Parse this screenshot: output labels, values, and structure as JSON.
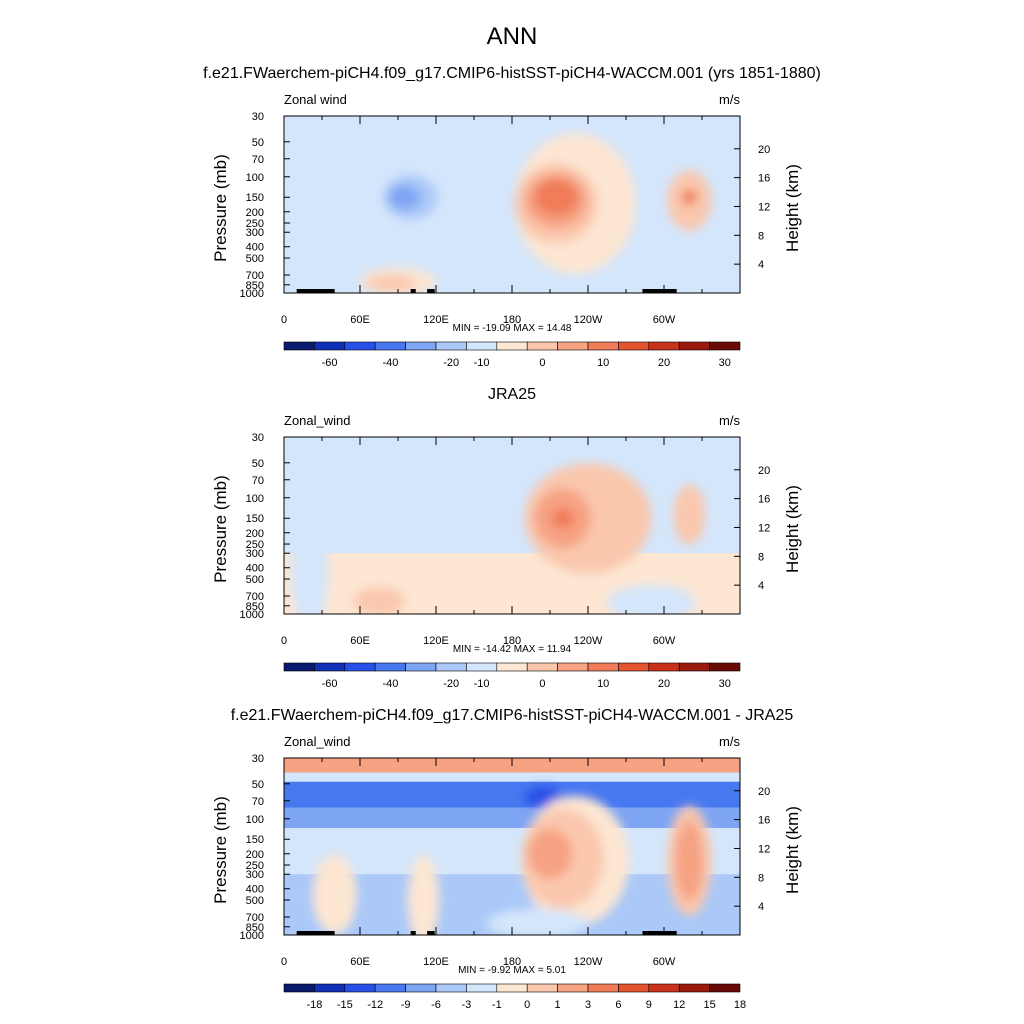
{
  "figure": {
    "title": "ANN"
  },
  "chart_data": [
    {
      "type": "heatmap",
      "title": "f.e21.FWaerchem-piCH4.f09_g17.CMIP6-histSST-piCH4-WACCM.001 (yrs 1851-1880)",
      "left_label": "Zonal wind",
      "right_label": "m/s",
      "ylabel": "Pressure (mb)",
      "ylabel_right": "Height (km)",
      "y_ticks": [
        "30",
        "50",
        "70",
        "100",
        "150",
        "200",
        "250",
        "300",
        "400",
        "500",
        "700",
        "850",
        "1000"
      ],
      "y_ticks_right": [
        "20",
        "16",
        "12",
        "8",
        "4"
      ],
      "x_ticks": [
        "0",
        "60E",
        "120E",
        "180",
        "120W",
        "60W"
      ],
      "stats": "MIN = -19.09  MAX =  14.48",
      "colorbar_labels": [
        "-60",
        "-40",
        "-20",
        "-10",
        "0",
        "10",
        "20",
        "30"
      ],
      "colorbar_colors": [
        "#0a1a6e",
        "#1030b8",
        "#2850e6",
        "#4878f0",
        "#7ea4f4",
        "#aac8f8",
        "#d4e6fb",
        "#fde6d2",
        "#fac7ad",
        "#f6a283",
        "#f07c58",
        "#e5542e",
        "#c8311a",
        "#9a1a0d",
        "#6a0a06"
      ],
      "bottom_band": "#d4e6fb",
      "blobs": [
        {
          "lon": 100,
          "p": 150,
          "w": 42,
          "h": 22,
          "c": "#aac8f8"
        },
        {
          "lon": 95,
          "p": 150,
          "w": 25,
          "h": 12,
          "c": "#7ea4f4"
        },
        {
          "lon": 230,
          "p": 170,
          "w": 95,
          "h": 70,
          "c": "#fde6d2"
        },
        {
          "lon": 215,
          "p": 170,
          "w": 65,
          "h": 40,
          "c": "#fac7ad"
        },
        {
          "lon": 215,
          "p": 160,
          "w": 50,
          "h": 28,
          "c": "#f6a283"
        },
        {
          "lon": 215,
          "p": 150,
          "w": 35,
          "h": 18,
          "c": "#f07c58"
        },
        {
          "lon": 320,
          "p": 160,
          "w": 35,
          "h": 30,
          "c": "#fac7ad"
        },
        {
          "lon": 320,
          "p": 150,
          "w": 12,
          "h": 8,
          "c": "#f07c58"
        },
        {
          "lon": 90,
          "p": 800,
          "w": 60,
          "h": 14,
          "c": "#fde6d2"
        },
        {
          "lon": 85,
          "p": 820,
          "w": 40,
          "h": 8,
          "c": "#fac7ad"
        }
      ],
      "topo": [
        {
          "lon0": 10,
          "lon1": 40
        },
        {
          "lon0": 100,
          "lon1": 104
        },
        {
          "lon0": 113,
          "lon1": 119
        },
        {
          "lon0": 283,
          "lon1": 310
        }
      ]
    },
    {
      "type": "heatmap",
      "title": "JRA25",
      "left_label": "Zonal_wind",
      "right_label": "m/s",
      "ylabel": "Pressure (mb)",
      "ylabel_right": "Height (km)",
      "y_ticks": [
        "30",
        "50",
        "70",
        "100",
        "150",
        "200",
        "250",
        "300",
        "400",
        "500",
        "700",
        "850",
        "1000"
      ],
      "y_ticks_right": [
        "20",
        "16",
        "12",
        "8",
        "4"
      ],
      "x_ticks": [
        "0",
        "60E",
        "120E",
        "180",
        "120W",
        "60W"
      ],
      "stats": "MIN = -14.42  MAX =  11.94",
      "colorbar_labels": [
        "-60",
        "-40",
        "-20",
        "-10",
        "0",
        "10",
        "20",
        "30"
      ],
      "colorbar_colors": [
        "#0a1a6e",
        "#1030b8",
        "#2850e6",
        "#4878f0",
        "#7ea4f4",
        "#aac8f8",
        "#d4e6fb",
        "#fde6d2",
        "#fac7ad",
        "#f6a283",
        "#f07c58",
        "#e5542e",
        "#c8311a",
        "#9a1a0d",
        "#6a0a06"
      ],
      "bottom_band": "#fde6d2",
      "blobs": [
        {
          "lon": 105,
          "p": 150,
          "w": 45,
          "h": 25,
          "c": "#d4e6fb"
        },
        {
          "lon": 20,
          "p": 400,
          "w": 30,
          "h": 60,
          "c": "#d4e6fb"
        },
        {
          "lon": 240,
          "p": 150,
          "w": 100,
          "h": 55,
          "c": "#fac7ad"
        },
        {
          "lon": 220,
          "p": 150,
          "w": 45,
          "h": 30,
          "c": "#f6a283"
        },
        {
          "lon": 220,
          "p": 150,
          "w": 18,
          "h": 10,
          "c": "#f07c58"
        },
        {
          "lon": 320,
          "p": 140,
          "w": 25,
          "h": 30,
          "c": "#fac7ad"
        },
        {
          "lon": 290,
          "p": 800,
          "w": 70,
          "h": 18,
          "c": "#d4e6fb"
        },
        {
          "lon": 75,
          "p": 780,
          "w": 40,
          "h": 14,
          "c": "#fac7ad"
        }
      ],
      "topo": []
    },
    {
      "type": "heatmap",
      "title": "f.e21.FWaerchem-piCH4.f09_g17.CMIP6-histSST-piCH4-WACCM.001 - JRA25",
      "left_label": "Zonal_wind",
      "right_label": "m/s",
      "ylabel": "Pressure (mb)",
      "ylabel_right": "Height (km)",
      "y_ticks": [
        "30",
        "50",
        "70",
        "100",
        "150",
        "200",
        "250",
        "300",
        "400",
        "500",
        "700",
        "850",
        "1000"
      ],
      "y_ticks_right": [
        "20",
        "16",
        "12",
        "8",
        "4"
      ],
      "x_ticks": [
        "0",
        "60E",
        "120E",
        "180",
        "120W",
        "60W"
      ],
      "stats": "MIN =  -9.92  MAX =   5.01",
      "colorbar_labels": [
        "-18",
        "-15",
        "-12",
        "-9",
        "-6",
        "-3",
        "-1",
        "0",
        "1",
        "3",
        "6",
        "9",
        "12",
        "15",
        "18"
      ],
      "colorbar_colors": [
        "#0a1a6e",
        "#1030b8",
        "#2850e6",
        "#4878f0",
        "#7ea4f4",
        "#aac8f8",
        "#d4e6fb",
        "#fde6d2",
        "#fac7ad",
        "#f6a283",
        "#f07c58",
        "#e5542e",
        "#c8311a",
        "#9a1a0d",
        "#6a0a06"
      ],
      "bottom_band": "#aac8f8",
      "layers": [
        {
          "p0": 30,
          "p1": 40,
          "c": "#f6a283"
        },
        {
          "p0": 40,
          "p1": 48,
          "c": "#d4e6fb"
        },
        {
          "p0": 48,
          "p1": 80,
          "c": "#4878f0"
        },
        {
          "p0": 80,
          "p1": 120,
          "c": "#7ea4f4"
        }
      ],
      "blobs": [
        {
          "lon": 205,
          "p": 65,
          "w": 30,
          "h": 10,
          "c": "#2850e6"
        },
        {
          "lon": 230,
          "p": 230,
          "w": 85,
          "h": 65,
          "c": "#fde6d2"
        },
        {
          "lon": 220,
          "p": 220,
          "w": 65,
          "h": 50,
          "c": "#fac7ad"
        },
        {
          "lon": 210,
          "p": 200,
          "w": 35,
          "h": 25,
          "c": "#f6a283"
        },
        {
          "lon": 320,
          "p": 230,
          "w": 35,
          "h": 55,
          "c": "#fac7ad"
        },
        {
          "lon": 320,
          "p": 230,
          "w": 22,
          "h": 40,
          "c": "#f6a283"
        },
        {
          "lon": 40,
          "p": 450,
          "w": 35,
          "h": 40,
          "c": "#fde6d2"
        },
        {
          "lon": 110,
          "p": 500,
          "w": 25,
          "h": 45,
          "c": "#fde6d2"
        },
        {
          "lon": 200,
          "p": 800,
          "w": 80,
          "h": 15,
          "c": "#d4e6fb"
        }
      ],
      "topo": [
        {
          "lon0": 10,
          "lon1": 40
        },
        {
          "lon0": 100,
          "lon1": 104
        },
        {
          "lon0": 113,
          "lon1": 119
        },
        {
          "lon0": 283,
          "lon1": 310
        }
      ]
    }
  ]
}
